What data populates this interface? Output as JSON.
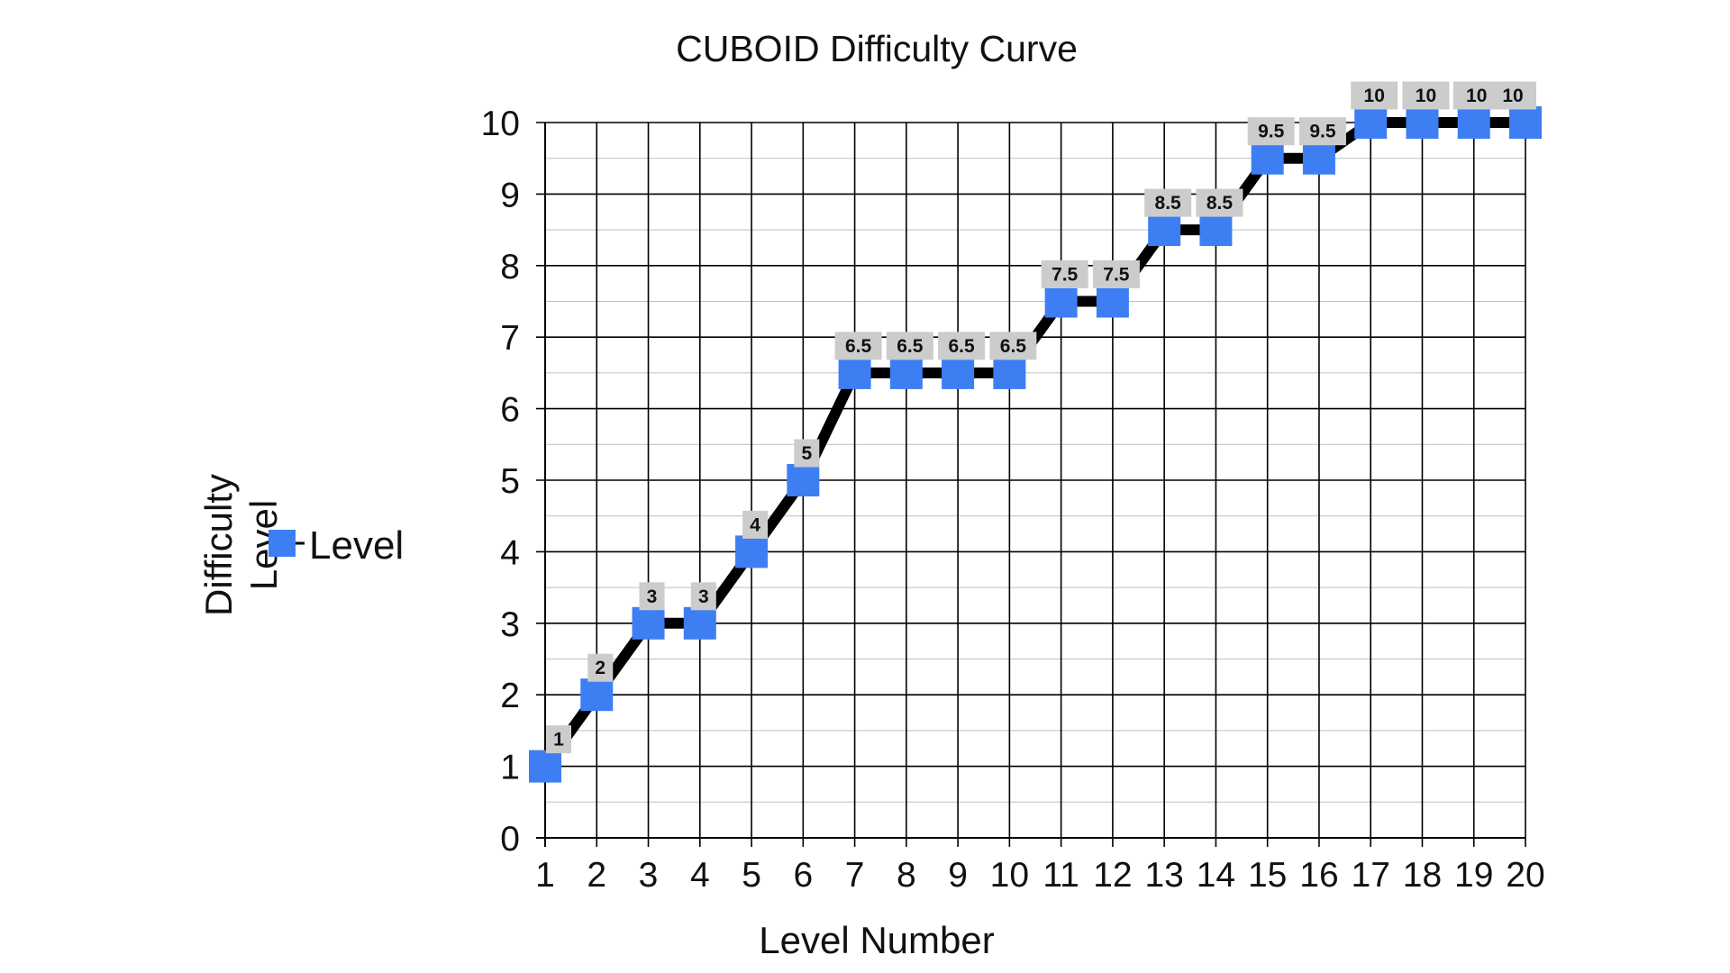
{
  "chart_data": {
    "type": "line",
    "title": "CUBOID Difficulty Curve",
    "xlabel": "Level Number",
    "ylabel": "Difficulty Level",
    "x": [
      1,
      2,
      3,
      4,
      5,
      6,
      7,
      8,
      9,
      10,
      11,
      12,
      13,
      14,
      15,
      16,
      17,
      18,
      19,
      20
    ],
    "series": [
      {
        "name": "Level",
        "values": [
          1,
          2,
          3,
          3,
          4,
          5,
          6.5,
          6.5,
          6.5,
          6.5,
          7.5,
          7.5,
          8.5,
          8.5,
          9.5,
          9.5,
          10,
          10,
          10,
          10
        ],
        "data_labels": [
          "1",
          "2",
          "3",
          "3",
          "4",
          "5",
          "6.5",
          "6.5",
          "6.5",
          "6.5",
          "7.5",
          "7.5",
          "8.5",
          "8.5",
          "9.5",
          "9.5",
          "10",
          "10",
          "10",
          "10"
        ],
        "line_color": "#000000",
        "marker_color": "#3d7ff2",
        "marker": "square"
      }
    ],
    "x_ticks": [
      "1",
      "2",
      "3",
      "4",
      "5",
      "6",
      "7",
      "8",
      "9",
      "10",
      "11",
      "12",
      "13",
      "14",
      "15",
      "16",
      "17",
      "18",
      "19",
      "20"
    ],
    "y_ticks": [
      "0",
      "1",
      "2",
      "3",
      "4",
      "5",
      "6",
      "7",
      "8",
      "9",
      "10"
    ],
    "xlim": [
      1,
      20
    ],
    "ylim": [
      0,
      10
    ],
    "y_minor_step": 0.5,
    "grid": true,
    "legend": {
      "placement": "left",
      "entries": [
        {
          "label": "Level",
          "color": "#3d7ff2",
          "marker": "square"
        }
      ]
    },
    "data_label_background": "#cccccc"
  }
}
